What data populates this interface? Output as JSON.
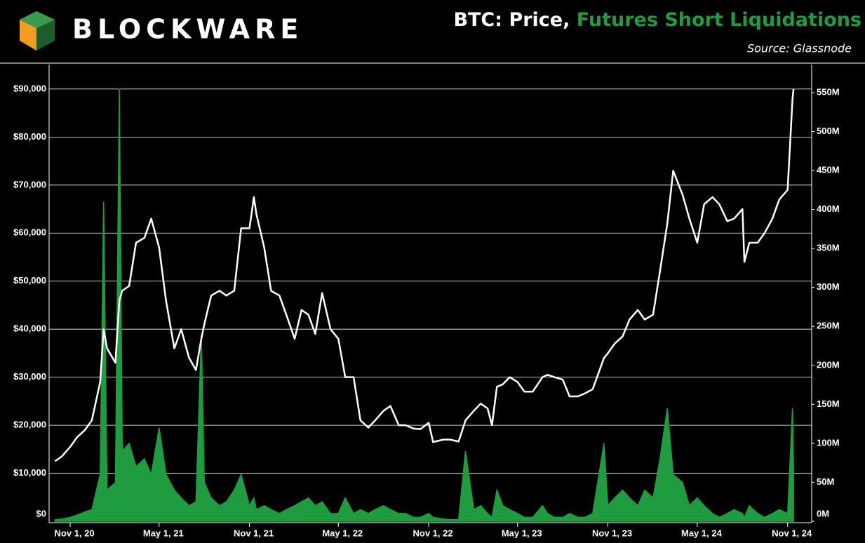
{
  "brand": "BLOCKWARE",
  "chart_data": {
    "type": "line",
    "title": [
      "BTC: Price,",
      "Futures Short Liquidations"
    ],
    "source": "Source: Glassnode",
    "x": [
      "2020-10-01",
      "2020-10-15",
      "2020-11-01",
      "2020-11-15",
      "2020-12-01",
      "2020-12-15",
      "2021-01-01",
      "2021-01-08",
      "2021-01-15",
      "2021-02-01",
      "2021-02-09",
      "2021-02-15",
      "2021-03-01",
      "2021-03-15",
      "2021-04-01",
      "2021-04-15",
      "2021-05-01",
      "2021-05-15",
      "2021-06-01",
      "2021-06-15",
      "2021-07-01",
      "2021-07-15",
      "2021-07-26",
      "2021-08-01",
      "2021-08-15",
      "2021-09-01",
      "2021-09-15",
      "2021-10-01",
      "2021-10-15",
      "2021-11-01",
      "2021-11-10",
      "2021-11-15",
      "2021-12-01",
      "2021-12-15",
      "2022-01-01",
      "2022-01-15",
      "2022-02-01",
      "2022-02-15",
      "2022-03-01",
      "2022-03-15",
      "2022-03-29",
      "2022-04-15",
      "2022-05-01",
      "2022-05-15",
      "2022-06-01",
      "2022-06-15",
      "2022-07-01",
      "2022-07-15",
      "2022-08-01",
      "2022-08-15",
      "2022-09-01",
      "2022-09-15",
      "2022-10-01",
      "2022-10-15",
      "2022-11-01",
      "2022-11-10",
      "2022-12-01",
      "2022-12-15",
      "2023-01-01",
      "2023-01-15",
      "2023-02-01",
      "2023-02-15",
      "2023-03-01",
      "2023-03-10",
      "2023-03-20",
      "2023-04-01",
      "2023-04-15",
      "2023-05-01",
      "2023-05-15",
      "2023-06-01",
      "2023-06-21",
      "2023-07-01",
      "2023-07-15",
      "2023-08-01",
      "2023-08-15",
      "2023-09-01",
      "2023-09-15",
      "2023-10-01",
      "2023-10-24",
      "2023-11-01",
      "2023-11-15",
      "2023-12-01",
      "2023-12-15",
      "2024-01-01",
      "2024-01-15",
      "2024-02-01",
      "2024-02-15",
      "2024-03-01",
      "2024-03-13",
      "2024-04-01",
      "2024-04-15",
      "2024-05-01",
      "2024-05-15",
      "2024-06-01",
      "2024-06-15",
      "2024-07-01",
      "2024-07-15",
      "2024-08-01",
      "2024-08-05",
      "2024-08-15",
      "2024-09-01",
      "2024-09-15",
      "2024-10-01",
      "2024-10-15",
      "2024-11-01",
      "2024-11-11",
      "2024-11-13"
    ],
    "series": [
      {
        "color": "#ffffff",
        "values": [
          12500,
          13500,
          15500,
          17500,
          19000,
          21000,
          29000,
          40000,
          36000,
          33000,
          46000,
          48000,
          49000,
          58000,
          59000,
          63000,
          57000,
          46000,
          36000,
          40000,
          34000,
          31500,
          38000,
          41000,
          47000,
          48000,
          47000,
          48000,
          61000,
          61000,
          67500,
          64000,
          57000,
          48000,
          47000,
          43000,
          38000,
          44000,
          43000,
          39000,
          47500,
          40000,
          38000,
          30000,
          30000,
          21000,
          19500,
          21000,
          23000,
          24000,
          20000,
          20000,
          19300,
          19200,
          20500,
          16500,
          17000,
          17000,
          16600,
          21000,
          23000,
          24500,
          23500,
          20000,
          28000,
          28500,
          30000,
          29000,
          27000,
          27000,
          30000,
          30500,
          30000,
          29500,
          26000,
          26000,
          26600,
          27500,
          34000,
          35000,
          37000,
          38500,
          42000,
          44000,
          42000,
          43000,
          52000,
          62000,
          73000,
          68000,
          63000,
          58000,
          66000,
          67500,
          66000,
          62500,
          63000,
          65000,
          54000,
          58000,
          58000,
          60000,
          63000,
          67000,
          69000,
          88000,
          90000
        ]
      },
      {
        "color": "#1f9c3f",
        "axis": "y2",
        "values": [
          2,
          3,
          5,
          8,
          12,
          15,
          60,
          410,
          40,
          50,
          555,
          90,
          100,
          70,
          80,
          60,
          120,
          60,
          40,
          30,
          20,
          25,
          240,
          50,
          30,
          20,
          25,
          40,
          60,
          20,
          30,
          15,
          20,
          15,
          10,
          15,
          20,
          25,
          30,
          20,
          25,
          10,
          10,
          30,
          10,
          15,
          10,
          15,
          20,
          15,
          10,
          10,
          5,
          5,
          10,
          5,
          3,
          2,
          2,
          90,
          15,
          20,
          10,
          5,
          40,
          20,
          15,
          10,
          5,
          5,
          20,
          10,
          5,
          5,
          10,
          5,
          5,
          10,
          100,
          20,
          30,
          40,
          30,
          20,
          40,
          30,
          80,
          145,
          60,
          50,
          20,
          30,
          20,
          10,
          5,
          10,
          15,
          10,
          5,
          20,
          10,
          5,
          10,
          15,
          10,
          145,
          70
        ]
      }
    ],
    "xlim": [
      "2020-09-19",
      "2024-12-20"
    ],
    "xticks": [
      {
        "value": "2020-11-01",
        "label": "Nov 1, 20"
      },
      {
        "value": "2021-05-01",
        "label": "May 1, 21"
      },
      {
        "value": "2021-11-01",
        "label": "Nov 1, 21"
      },
      {
        "value": "2022-05-01",
        "label": "May 1, 22"
      },
      {
        "value": "2022-11-01",
        "label": "Nov 1, 22"
      },
      {
        "value": "2023-05-01",
        "label": "May 1, 23"
      },
      {
        "value": "2023-11-01",
        "label": "Nov 1, 23"
      },
      {
        "value": "2024-05-01",
        "label": "May 1, 24"
      },
      {
        "value": "2024-11-01",
        "label": "Nov 1, 24"
      }
    ],
    "ylim": [
      0,
      95100
    ],
    "yticks": [
      {
        "value": 0,
        "label": "$0"
      },
      {
        "value": 10000,
        "label": "$10,000"
      },
      {
        "value": 20000,
        "label": "$20,000"
      },
      {
        "value": 30000,
        "label": "$30,000"
      },
      {
        "value": 40000,
        "label": "$40,000"
      },
      {
        "value": 50000,
        "label": "$50,000"
      },
      {
        "value": 60000,
        "label": "$60,000"
      },
      {
        "value": 70000,
        "label": "$70,000"
      },
      {
        "value": 80000,
        "label": "$80,000"
      },
      {
        "value": 90000,
        "label": "$90,000"
      }
    ],
    "y2lim": [
      0,
      586
    ],
    "y2ticks": [
      {
        "value": 0,
        "label": "0M"
      },
      {
        "value": 50,
        "label": "50M"
      },
      {
        "value": 100,
        "label": "100M"
      },
      {
        "value": 150,
        "label": "150M"
      },
      {
        "value": 200,
        "label": "200M"
      },
      {
        "value": 250,
        "label": "250M"
      },
      {
        "value": 300,
        "label": "300M"
      },
      {
        "value": 350,
        "label": "350M"
      },
      {
        "value": 400,
        "label": "400M"
      },
      {
        "value": 450,
        "label": "450M"
      },
      {
        "value": 500,
        "label": "500M"
      },
      {
        "value": 550,
        "label": "550M"
      }
    ],
    "grid": true
  }
}
